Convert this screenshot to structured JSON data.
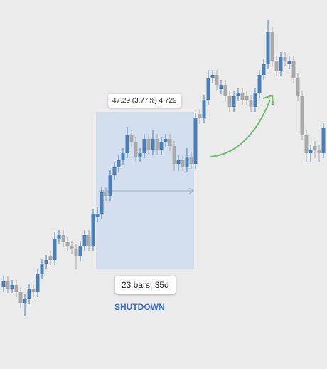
{
  "chart_data": {
    "type": "candlestick",
    "measure_label": "47.29 (3.77%) 4,729",
    "range_label": "23 bars, 35d",
    "annotation": "SHUTDOWN",
    "up_color": "#4a80b8",
    "down_color": "#a9a9a9",
    "ylim": [
      0,
      518
    ],
    "open": [
      115,
      123,
      113,
      118,
      108,
      93,
      98,
      113,
      108,
      133,
      148,
      158,
      153,
      183,
      188,
      178,
      173,
      168,
      158,
      173,
      188,
      173,
      213,
      218,
      248,
      243,
      273,
      283,
      293,
      303,
      328,
      318,
      298,
      303,
      323,
      308,
      323,
      308,
      318,
      323,
      313,
      288,
      293,
      283,
      298,
      288,
      358,
      353,
      378,
      408,
      413,
      393,
      398,
      383,
      368,
      383,
      388,
      383,
      378,
      368,
      388,
      413,
      428,
      473,
      433,
      418,
      438,
      428,
      433,
      408,
      383,
      328,
      303,
      313,
      308,
      303
    ],
    "high": [
      130,
      130,
      125,
      125,
      115,
      105,
      120,
      120,
      140,
      155,
      160,
      165,
      193,
      195,
      195,
      185,
      180,
      175,
      180,
      195,
      195,
      225,
      228,
      255,
      255,
      280,
      290,
      300,
      310,
      340,
      335,
      325,
      310,
      330,
      330,
      335,
      330,
      325,
      330,
      330,
      320,
      300,
      300,
      310,
      305,
      360,
      365,
      385,
      420,
      420,
      420,
      405,
      405,
      390,
      390,
      395,
      395,
      390,
      385,
      395,
      420,
      435,
      490,
      480,
      440,
      445,
      445,
      440,
      440,
      415,
      390,
      335,
      315,
      320,
      315,
      345
    ],
    "low": [
      108,
      106,
      106,
      101,
      86,
      75,
      91,
      101,
      101,
      126,
      141,
      146,
      146,
      176,
      171,
      166,
      161,
      140,
      151,
      166,
      166,
      166,
      206,
      211,
      236,
      236,
      266,
      276,
      286,
      296,
      311,
      291,
      291,
      296,
      301,
      301,
      301,
      301,
      311,
      306,
      278,
      278,
      276,
      276,
      281,
      281,
      346,
      346,
      371,
      401,
      391,
      386,
      376,
      361,
      361,
      376,
      371,
      371,
      361,
      361,
      381,
      406,
      421,
      426,
      411,
      411,
      426,
      421,
      401,
      376,
      321,
      291,
      291,
      296,
      291,
      296
    ],
    "close": [
      123,
      113,
      118,
      108,
      93,
      98,
      113,
      108,
      133,
      148,
      153,
      153,
      183,
      188,
      178,
      173,
      168,
      158,
      173,
      188,
      173,
      218,
      218,
      248,
      243,
      273,
      283,
      293,
      303,
      328,
      318,
      298,
      303,
      323,
      308,
      323,
      308,
      318,
      323,
      313,
      288,
      293,
      283,
      298,
      288,
      353,
      353,
      378,
      408,
      413,
      398,
      398,
      383,
      368,
      383,
      388,
      378,
      378,
      368,
      388,
      413,
      428,
      473,
      433,
      418,
      438,
      433,
      433,
      408,
      383,
      328,
      303,
      308,
      308,
      303,
      338
    ]
  }
}
